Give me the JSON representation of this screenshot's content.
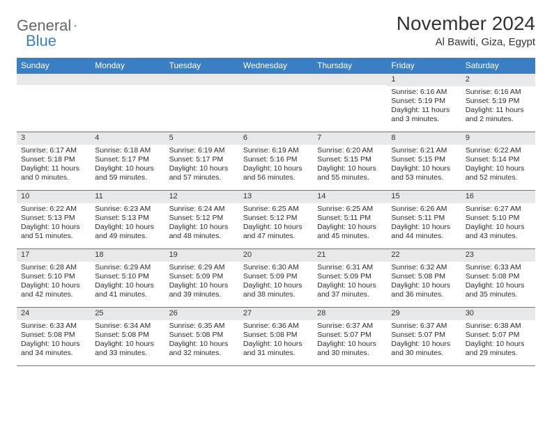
{
  "logo": {
    "general": "General",
    "blue": "Blue"
  },
  "title": "November 2024",
  "location": "Al Bawiti, Giza, Egypt",
  "weekdays": [
    "Sunday",
    "Monday",
    "Tuesday",
    "Wednesday",
    "Thursday",
    "Friday",
    "Saturday"
  ],
  "colors": {
    "header_bg": "#3a7fc4",
    "daynum_bg": "#e7e8ea",
    "border": "#3a7fc4",
    "text": "#2c2c2c"
  },
  "weeks": [
    [
      {
        "n": "",
        "sr": "",
        "ss": "",
        "dl": ""
      },
      {
        "n": "",
        "sr": "",
        "ss": "",
        "dl": ""
      },
      {
        "n": "",
        "sr": "",
        "ss": "",
        "dl": ""
      },
      {
        "n": "",
        "sr": "",
        "ss": "",
        "dl": ""
      },
      {
        "n": "",
        "sr": "",
        "ss": "",
        "dl": ""
      },
      {
        "n": "1",
        "sr": "Sunrise: 6:16 AM",
        "ss": "Sunset: 5:19 PM",
        "dl": "Daylight: 11 hours and 3 minutes."
      },
      {
        "n": "2",
        "sr": "Sunrise: 6:16 AM",
        "ss": "Sunset: 5:19 PM",
        "dl": "Daylight: 11 hours and 2 minutes."
      }
    ],
    [
      {
        "n": "3",
        "sr": "Sunrise: 6:17 AM",
        "ss": "Sunset: 5:18 PM",
        "dl": "Daylight: 11 hours and 0 minutes."
      },
      {
        "n": "4",
        "sr": "Sunrise: 6:18 AM",
        "ss": "Sunset: 5:17 PM",
        "dl": "Daylight: 10 hours and 59 minutes."
      },
      {
        "n": "5",
        "sr": "Sunrise: 6:19 AM",
        "ss": "Sunset: 5:17 PM",
        "dl": "Daylight: 10 hours and 57 minutes."
      },
      {
        "n": "6",
        "sr": "Sunrise: 6:19 AM",
        "ss": "Sunset: 5:16 PM",
        "dl": "Daylight: 10 hours and 56 minutes."
      },
      {
        "n": "7",
        "sr": "Sunrise: 6:20 AM",
        "ss": "Sunset: 5:15 PM",
        "dl": "Daylight: 10 hours and 55 minutes."
      },
      {
        "n": "8",
        "sr": "Sunrise: 6:21 AM",
        "ss": "Sunset: 5:15 PM",
        "dl": "Daylight: 10 hours and 53 minutes."
      },
      {
        "n": "9",
        "sr": "Sunrise: 6:22 AM",
        "ss": "Sunset: 5:14 PM",
        "dl": "Daylight: 10 hours and 52 minutes."
      }
    ],
    [
      {
        "n": "10",
        "sr": "Sunrise: 6:22 AM",
        "ss": "Sunset: 5:13 PM",
        "dl": "Daylight: 10 hours and 51 minutes."
      },
      {
        "n": "11",
        "sr": "Sunrise: 6:23 AM",
        "ss": "Sunset: 5:13 PM",
        "dl": "Daylight: 10 hours and 49 minutes."
      },
      {
        "n": "12",
        "sr": "Sunrise: 6:24 AM",
        "ss": "Sunset: 5:12 PM",
        "dl": "Daylight: 10 hours and 48 minutes."
      },
      {
        "n": "13",
        "sr": "Sunrise: 6:25 AM",
        "ss": "Sunset: 5:12 PM",
        "dl": "Daylight: 10 hours and 47 minutes."
      },
      {
        "n": "14",
        "sr": "Sunrise: 6:25 AM",
        "ss": "Sunset: 5:11 PM",
        "dl": "Daylight: 10 hours and 45 minutes."
      },
      {
        "n": "15",
        "sr": "Sunrise: 6:26 AM",
        "ss": "Sunset: 5:11 PM",
        "dl": "Daylight: 10 hours and 44 minutes."
      },
      {
        "n": "16",
        "sr": "Sunrise: 6:27 AM",
        "ss": "Sunset: 5:10 PM",
        "dl": "Daylight: 10 hours and 43 minutes."
      }
    ],
    [
      {
        "n": "17",
        "sr": "Sunrise: 6:28 AM",
        "ss": "Sunset: 5:10 PM",
        "dl": "Daylight: 10 hours and 42 minutes."
      },
      {
        "n": "18",
        "sr": "Sunrise: 6:29 AM",
        "ss": "Sunset: 5:10 PM",
        "dl": "Daylight: 10 hours and 41 minutes."
      },
      {
        "n": "19",
        "sr": "Sunrise: 6:29 AM",
        "ss": "Sunset: 5:09 PM",
        "dl": "Daylight: 10 hours and 39 minutes."
      },
      {
        "n": "20",
        "sr": "Sunrise: 6:30 AM",
        "ss": "Sunset: 5:09 PM",
        "dl": "Daylight: 10 hours and 38 minutes."
      },
      {
        "n": "21",
        "sr": "Sunrise: 6:31 AM",
        "ss": "Sunset: 5:09 PM",
        "dl": "Daylight: 10 hours and 37 minutes."
      },
      {
        "n": "22",
        "sr": "Sunrise: 6:32 AM",
        "ss": "Sunset: 5:08 PM",
        "dl": "Daylight: 10 hours and 36 minutes."
      },
      {
        "n": "23",
        "sr": "Sunrise: 6:33 AM",
        "ss": "Sunset: 5:08 PM",
        "dl": "Daylight: 10 hours and 35 minutes."
      }
    ],
    [
      {
        "n": "24",
        "sr": "Sunrise: 6:33 AM",
        "ss": "Sunset: 5:08 PM",
        "dl": "Daylight: 10 hours and 34 minutes."
      },
      {
        "n": "25",
        "sr": "Sunrise: 6:34 AM",
        "ss": "Sunset: 5:08 PM",
        "dl": "Daylight: 10 hours and 33 minutes."
      },
      {
        "n": "26",
        "sr": "Sunrise: 6:35 AM",
        "ss": "Sunset: 5:08 PM",
        "dl": "Daylight: 10 hours and 32 minutes."
      },
      {
        "n": "27",
        "sr": "Sunrise: 6:36 AM",
        "ss": "Sunset: 5:08 PM",
        "dl": "Daylight: 10 hours and 31 minutes."
      },
      {
        "n": "28",
        "sr": "Sunrise: 6:37 AM",
        "ss": "Sunset: 5:07 PM",
        "dl": "Daylight: 10 hours and 30 minutes."
      },
      {
        "n": "29",
        "sr": "Sunrise: 6:37 AM",
        "ss": "Sunset: 5:07 PM",
        "dl": "Daylight: 10 hours and 30 minutes."
      },
      {
        "n": "30",
        "sr": "Sunrise: 6:38 AM",
        "ss": "Sunset: 5:07 PM",
        "dl": "Daylight: 10 hours and 29 minutes."
      }
    ]
  ]
}
